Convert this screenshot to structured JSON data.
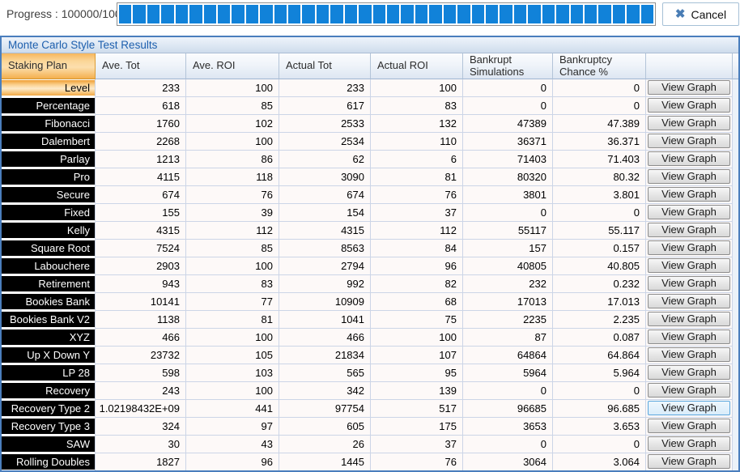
{
  "progress": {
    "label": "Progress : 100000/100...",
    "percent": 100,
    "cancel_label": "Cancel"
  },
  "panel": {
    "title": "Monte Carlo Style Test Results"
  },
  "table": {
    "columns": [
      "Staking Plan",
      "Ave. Tot",
      "Ave. ROI",
      "Actual Tot",
      "Actual ROI",
      "Bankrupt Simulations",
      "Bankruptcy Chance %"
    ],
    "action_label": "View Graph",
    "rows": [
      {
        "plan": "Level",
        "ave_tot": "233",
        "ave_roi": "100",
        "actual_tot": "233",
        "actual_roi": "100",
        "bankrupt_sims": "0",
        "bankruptcy_chance": "0",
        "selected": true
      },
      {
        "plan": "Percentage",
        "ave_tot": "618",
        "ave_roi": "85",
        "actual_tot": "617",
        "actual_roi": "83",
        "bankrupt_sims": "0",
        "bankruptcy_chance": "0"
      },
      {
        "plan": "Fibonacci",
        "ave_tot": "1760",
        "ave_roi": "102",
        "actual_tot": "2533",
        "actual_roi": "132",
        "bankrupt_sims": "47389",
        "bankruptcy_chance": "47.389"
      },
      {
        "plan": "Dalembert",
        "ave_tot": "2268",
        "ave_roi": "100",
        "actual_tot": "2534",
        "actual_roi": "110",
        "bankrupt_sims": "36371",
        "bankruptcy_chance": "36.371"
      },
      {
        "plan": "Parlay",
        "ave_tot": "1213",
        "ave_roi": "86",
        "actual_tot": "62",
        "actual_roi": "6",
        "bankrupt_sims": "71403",
        "bankruptcy_chance": "71.403"
      },
      {
        "plan": "Pro",
        "ave_tot": "4115",
        "ave_roi": "118",
        "actual_tot": "3090",
        "actual_roi": "81",
        "bankrupt_sims": "80320",
        "bankruptcy_chance": "80.32"
      },
      {
        "plan": "Secure",
        "ave_tot": "674",
        "ave_roi": "76",
        "actual_tot": "674",
        "actual_roi": "76",
        "bankrupt_sims": "3801",
        "bankruptcy_chance": "3.801"
      },
      {
        "plan": "Fixed",
        "ave_tot": "155",
        "ave_roi": "39",
        "actual_tot": "154",
        "actual_roi": "37",
        "bankrupt_sims": "0",
        "bankruptcy_chance": "0"
      },
      {
        "plan": "Kelly",
        "ave_tot": "4315",
        "ave_roi": "112",
        "actual_tot": "4315",
        "actual_roi": "112",
        "bankrupt_sims": "55117",
        "bankruptcy_chance": "55.117"
      },
      {
        "plan": "Square Root",
        "ave_tot": "7524",
        "ave_roi": "85",
        "actual_tot": "8563",
        "actual_roi": "84",
        "bankrupt_sims": "157",
        "bankruptcy_chance": "0.157"
      },
      {
        "plan": "Labouchere",
        "ave_tot": "2903",
        "ave_roi": "100",
        "actual_tot": "2794",
        "actual_roi": "96",
        "bankrupt_sims": "40805",
        "bankruptcy_chance": "40.805"
      },
      {
        "plan": "Retirement",
        "ave_tot": "943",
        "ave_roi": "83",
        "actual_tot": "992",
        "actual_roi": "82",
        "bankrupt_sims": "232",
        "bankruptcy_chance": "0.232"
      },
      {
        "plan": "Bookies Bank",
        "ave_tot": "10141",
        "ave_roi": "77",
        "actual_tot": "10909",
        "actual_roi": "68",
        "bankrupt_sims": "17013",
        "bankruptcy_chance": "17.013"
      },
      {
        "plan": "Bookies Bank V2",
        "ave_tot": "1138",
        "ave_roi": "81",
        "actual_tot": "1041",
        "actual_roi": "75",
        "bankrupt_sims": "2235",
        "bankruptcy_chance": "2.235"
      },
      {
        "plan": "XYZ",
        "ave_tot": "466",
        "ave_roi": "100",
        "actual_tot": "466",
        "actual_roi": "100",
        "bankrupt_sims": "87",
        "bankruptcy_chance": "0.087"
      },
      {
        "plan": "Up X Down Y",
        "ave_tot": "23732",
        "ave_roi": "105",
        "actual_tot": "21834",
        "actual_roi": "107",
        "bankrupt_sims": "64864",
        "bankruptcy_chance": "64.864"
      },
      {
        "plan": "LP 28",
        "ave_tot": "598",
        "ave_roi": "103",
        "actual_tot": "565",
        "actual_roi": "95",
        "bankrupt_sims": "5964",
        "bankruptcy_chance": "5.964"
      },
      {
        "plan": "Recovery",
        "ave_tot": "243",
        "ave_roi": "100",
        "actual_tot": "342",
        "actual_roi": "139",
        "bankrupt_sims": "0",
        "bankruptcy_chance": "0"
      },
      {
        "plan": "Recovery Type 2",
        "ave_tot": "1.02198432E+09",
        "ave_roi": "441",
        "actual_tot": "97754",
        "actual_roi": "517",
        "bankrupt_sims": "96685",
        "bankruptcy_chance": "96.685",
        "button_highlight": true
      },
      {
        "plan": "Recovery Type 3",
        "ave_tot": "324",
        "ave_roi": "97",
        "actual_tot": "605",
        "actual_roi": "175",
        "bankrupt_sims": "3653",
        "bankruptcy_chance": "3.653"
      },
      {
        "plan": "SAW",
        "ave_tot": "30",
        "ave_roi": "43",
        "actual_tot": "26",
        "actual_roi": "37",
        "bankrupt_sims": "0",
        "bankruptcy_chance": "0"
      },
      {
        "plan": "Rolling Doubles",
        "ave_tot": "1827",
        "ave_roi": "96",
        "actual_tot": "1445",
        "actual_roi": "76",
        "bankrupt_sims": "3064",
        "bankruptcy_chance": "3.064"
      }
    ]
  },
  "colors": {
    "progress_fill": "#1182d9",
    "panel_border": "#4a7ebd",
    "title_text": "#1d5fae",
    "selected_orange": "#f5b75f"
  }
}
